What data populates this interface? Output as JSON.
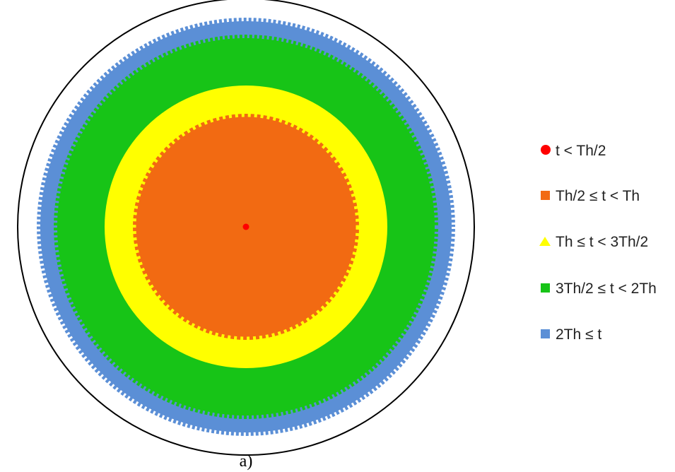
{
  "figure": {
    "caption": "a)",
    "colors": {
      "outline": "#000000",
      "background": "#ffffff"
    },
    "zones": [
      {
        "id": "blue",
        "color": "#5b8fd6"
      },
      {
        "id": "green",
        "color": "#17c417"
      },
      {
        "id": "yellow",
        "color": "#ffff00"
      },
      {
        "id": "orange",
        "color": "#f26a12"
      },
      {
        "id": "red",
        "color": "#ff0000"
      }
    ]
  },
  "legend": {
    "items": [
      {
        "marker": "circle",
        "color": "#ff0000",
        "label": "t < Th/2"
      },
      {
        "marker": "square",
        "color": "#f26a12",
        "label": "Th/2 ≤ t < Th"
      },
      {
        "marker": "triangle",
        "color": "#ffff00",
        "label": "Th ≤ t < 3Th/2"
      },
      {
        "marker": "square",
        "color": "#17c417",
        "label": "3Th/2 ≤ t < 2Th"
      },
      {
        "marker": "square",
        "color": "#5b8fd6",
        "label": "2Th ≤ t"
      }
    ]
  }
}
